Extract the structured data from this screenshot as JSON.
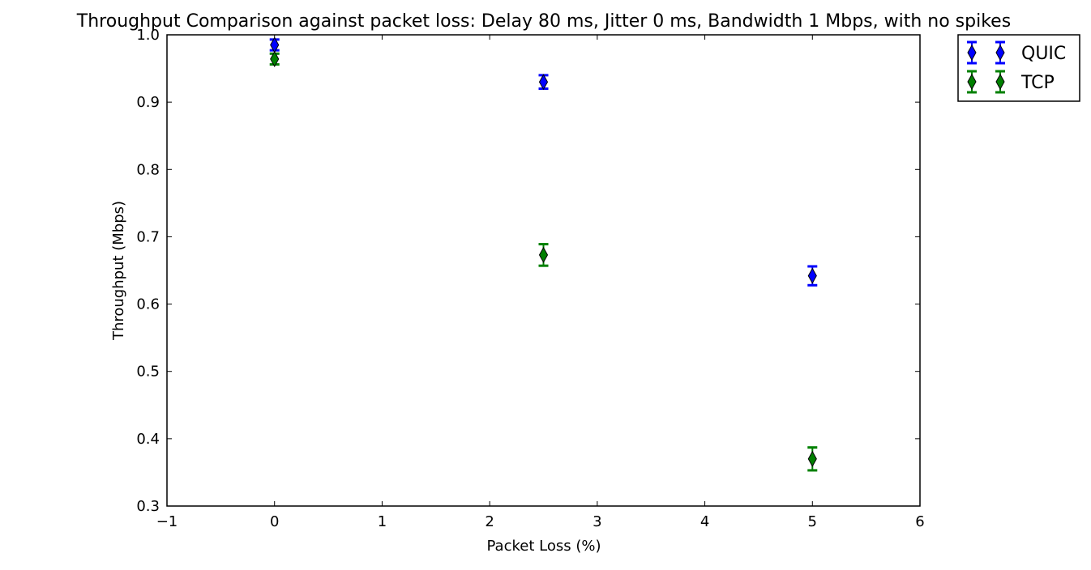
{
  "chart_data": {
    "type": "scatter",
    "title": "Throughput Comparison against packet loss: Delay 80 ms, Jitter 0 ms, Bandwidth 1 Mbps, with no spikes",
    "xlabel": "Packet Loss (%)",
    "ylabel": "Throughput (Mbps)",
    "xlim": [
      -1,
      6
    ],
    "ylim": [
      0.3,
      1.0
    ],
    "x_ticks": [
      "−1",
      "0",
      "1",
      "2",
      "3",
      "4",
      "5",
      "6"
    ],
    "y_ticks": [
      "0.3",
      "0.4",
      "0.5",
      "0.6",
      "0.7",
      "0.8",
      "0.9",
      "1.0"
    ],
    "x_tick_values": [
      -1,
      0,
      1,
      2,
      3,
      4,
      5,
      6
    ],
    "y_tick_values": [
      0.3,
      0.4,
      0.5,
      0.6,
      0.7,
      0.8,
      0.9,
      1.0
    ],
    "grid": false,
    "legend_position": "outside-top-right",
    "marker": "thin-diamond",
    "series": [
      {
        "name": "QUIC",
        "color": "#0000ff",
        "x": [
          0,
          2.5,
          5
        ],
        "y": [
          0.985,
          0.93,
          0.642
        ],
        "yerr": [
          0.008,
          0.01,
          0.014
        ]
      },
      {
        "name": "TCP",
        "color": "#008000",
        "x": [
          0,
          2.5,
          5
        ],
        "y": [
          0.964,
          0.673,
          0.37
        ],
        "yerr": [
          0.008,
          0.016,
          0.017
        ]
      }
    ]
  }
}
